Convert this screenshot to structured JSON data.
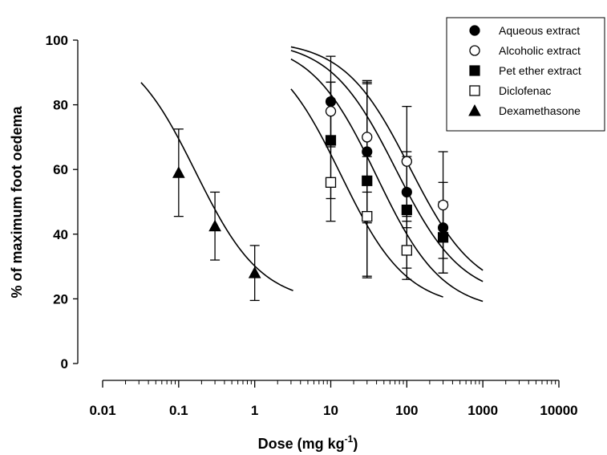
{
  "chart_data": {
    "type": "scatter",
    "x_scale": "log",
    "xlabel": "Dose (mg kg",
    "xlabel_sup": "-1",
    "xlabel_close": ")",
    "ylabel": "% of maximum foot oedema",
    "xlim": [
      0.01,
      10000
    ],
    "ylim": [
      0,
      100
    ],
    "x_ticks": [
      0.01,
      0.1,
      1,
      10,
      100,
      1000,
      10000
    ],
    "x_tick_labels": [
      "0.01",
      "0.1",
      "1",
      "10",
      "100",
      "1000",
      "10000"
    ],
    "y_ticks": [
      0,
      20,
      40,
      60,
      80,
      100
    ],
    "y_tick_labels": [
      "0",
      "20",
      "40",
      "60",
      "80",
      "100"
    ],
    "grid": false,
    "legend_position": "top-right",
    "series": [
      {
        "name": "Aqueous extract",
        "marker": "circle-filled",
        "x": [
          10,
          30,
          100,
          300
        ],
        "y": [
          81,
          65.5,
          53,
          42
        ],
        "err": [
          14,
          22,
          11,
          14
        ],
        "fit": {
          "top": 100,
          "bottom": 20,
          "ec50": 72,
          "slope": 1,
          "from": 3,
          "to": 1000
        }
      },
      {
        "name": "Alcoholic extract",
        "marker": "circle-open",
        "x": [
          10,
          30,
          100,
          300
        ],
        "y": [
          78,
          70,
          62.5,
          49
        ],
        "err": [
          9,
          17,
          17,
          16.5
        ],
        "fit": {
          "top": 100,
          "bottom": 21,
          "ec50": 110,
          "slope": 1,
          "from": 3,
          "to": 1000
        }
      },
      {
        "name": "Pet ether extract",
        "marker": "square-filled",
        "x": [
          10,
          30,
          100,
          300
        ],
        "y": [
          69,
          56.5,
          47.5,
          39
        ],
        "err": [
          18,
          30,
          18,
          11
        ],
        "fit": {
          "top": 100,
          "bottom": 16,
          "ec50": 40,
          "slope": 1,
          "from": 3,
          "to": 1000
        }
      },
      {
        "name": "Diclofenac",
        "marker": "square-open",
        "x": [
          10,
          30,
          100
        ],
        "y": [
          56,
          45.5,
          35
        ],
        "err": [
          12,
          18.5,
          9
        ],
        "fit": {
          "top": 100,
          "bottom": 17,
          "ec50": 13.5,
          "slope": 1,
          "from": 3,
          "to": 300
        }
      },
      {
        "name": "Dexamethasone",
        "marker": "triangle-filled",
        "x": [
          0.1,
          0.3,
          1
        ],
        "y": [
          59,
          42.5,
          28
        ],
        "err": [
          13.5,
          10.5,
          8.5
        ],
        "fit": {
          "top": 100,
          "bottom": 18.5,
          "ec50": 0.167,
          "slope": 1,
          "from": 0.032,
          "to": 3.2
        }
      }
    ]
  }
}
